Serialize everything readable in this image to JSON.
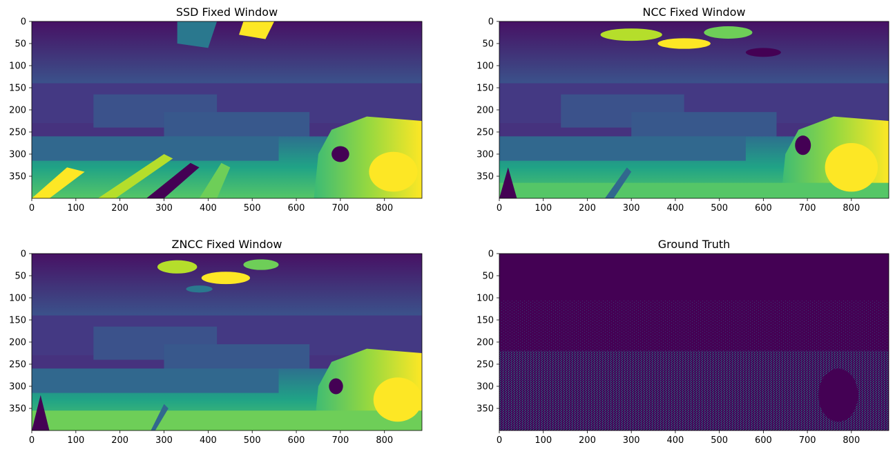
{
  "chart_data": [
    {
      "type": "heatmap",
      "title": "SSD Fixed Window",
      "colormap": "viridis",
      "image_width": 885,
      "image_height": 400,
      "xlim": [
        0,
        885
      ],
      "ylim": [
        400,
        0
      ],
      "x_ticks": [
        0,
        100,
        200,
        300,
        400,
        500,
        600,
        700,
        800
      ],
      "y_ticks": [
        0,
        50,
        100,
        150,
        200,
        250,
        300,
        350
      ]
    },
    {
      "type": "heatmap",
      "title": "NCC Fixed Window",
      "colormap": "viridis",
      "image_width": 885,
      "image_height": 400,
      "xlim": [
        0,
        885
      ],
      "ylim": [
        400,
        0
      ],
      "x_ticks": [
        0,
        100,
        200,
        300,
        400,
        500,
        600,
        700,
        800
      ],
      "y_ticks": [
        0,
        50,
        100,
        150,
        200,
        250,
        300,
        350
      ]
    },
    {
      "type": "heatmap",
      "title": "ZNCC Fixed Window",
      "colormap": "viridis",
      "image_width": 885,
      "image_height": 400,
      "xlim": [
        0,
        885
      ],
      "ylim": [
        400,
        0
      ],
      "x_ticks": [
        0,
        100,
        200,
        300,
        400,
        500,
        600,
        700,
        800
      ],
      "y_ticks": [
        0,
        50,
        100,
        150,
        200,
        250,
        300,
        350
      ]
    },
    {
      "type": "heatmap",
      "title": "Ground Truth",
      "colormap": "viridis",
      "image_width": 885,
      "image_height": 400,
      "xlim": [
        0,
        885
      ],
      "ylim": [
        400,
        0
      ],
      "x_ticks": [
        0,
        100,
        200,
        300,
        400,
        500,
        600,
        700,
        800
      ],
      "y_ticks": [
        0,
        50,
        100,
        150,
        200,
        250,
        300,
        350
      ]
    }
  ]
}
